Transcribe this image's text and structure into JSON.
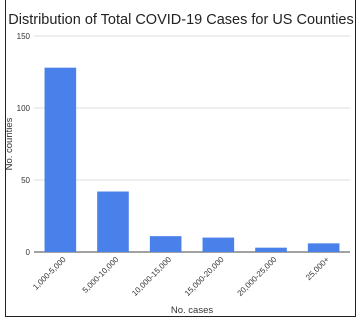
{
  "chart_data": {
    "type": "bar",
    "title": "Distribution of Total COVID-19 Cases for US Counties",
    "xlabel": "No. cases",
    "ylabel": "No. counties",
    "categories": [
      "1,000-5,000",
      "5,000-10,000",
      "10,000-15,000",
      "15,000-20,000",
      "20,000-25,000",
      "25,000+"
    ],
    "values": [
      128,
      42,
      11,
      10,
      3,
      6
    ],
    "ylim": [
      0,
      150
    ],
    "yticks": [
      "0",
      "50",
      "100",
      "150"
    ],
    "grid": true,
    "bar_color": "#4a80ea"
  }
}
